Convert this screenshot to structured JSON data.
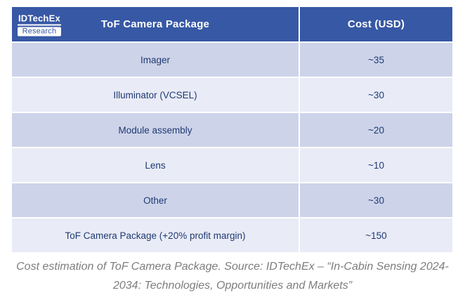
{
  "logo": {
    "brand": "IDTechEx",
    "sub": "Research"
  },
  "table": {
    "header": {
      "col1": "ToF Camera Package",
      "col2": "Cost (USD)"
    },
    "rows": [
      {
        "item": "Imager",
        "cost": "~35"
      },
      {
        "item": "Illuminator (VCSEL)",
        "cost": "~30"
      },
      {
        "item": "Module assembly",
        "cost": "~20"
      },
      {
        "item": "Lens",
        "cost": "~10"
      },
      {
        "item": "Other",
        "cost": "~30"
      },
      {
        "item": "ToF Camera Package (+20% profit margin)",
        "cost": "~150"
      }
    ]
  },
  "caption": {
    "line1": "Cost estimation of ToF Camera Package. Source: IDTechEx – “In-Cabin Sensing 2024-",
    "line2": "2034: Technologies, Opportunities and Markets”"
  },
  "colors": {
    "header_blue": "#3758a5",
    "row_dark": "#cdd3e9",
    "row_light": "#e9ebf6",
    "cell_text": "#1f3a72",
    "header_text": "#ffffff",
    "caption_gray": "#7d7d7d",
    "page_bg": "#ffffff"
  },
  "chart_data": {
    "type": "table",
    "title": "ToF Camera Package",
    "columns": [
      "ToF Camera Package",
      "Cost (USD)"
    ],
    "rows": [
      [
        "Imager",
        "~35"
      ],
      [
        "Illuminator (VCSEL)",
        "~30"
      ],
      [
        "Module assembly",
        "~20"
      ],
      [
        "Lens",
        "~10"
      ],
      [
        "Other",
        "~30"
      ],
      [
        "ToF Camera Package (+20% profit margin)",
        "~150"
      ]
    ],
    "values_numeric": [
      35,
      30,
      20,
      10,
      30,
      150
    ],
    "caption": "Cost estimation of ToF Camera Package. Source: IDTechEx – “In-Cabin Sensing 2024-2034: Technologies, Opportunities and Markets”"
  }
}
